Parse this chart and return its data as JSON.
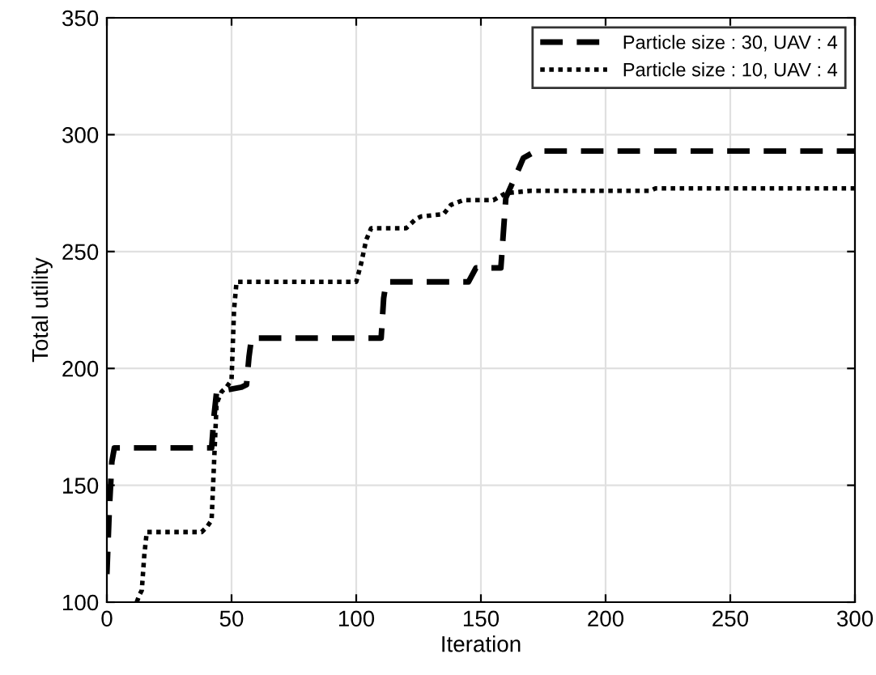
{
  "chart_data": {
    "type": "line",
    "xlabel": "Iteration",
    "ylabel": "Total utility",
    "xlim": [
      0,
      300
    ],
    "ylim": [
      100,
      350
    ],
    "xticks": [
      0,
      50,
      100,
      150,
      200,
      250,
      300
    ],
    "yticks": [
      100,
      150,
      200,
      250,
      300,
      350
    ],
    "grid": true,
    "legend": "top right",
    "marker": "none",
    "series": [
      {
        "name": "Particle size : 30, UAV : 4",
        "color": "#000000",
        "line_style": "dashed",
        "x": [
          0,
          1,
          2,
          3,
          42,
          43,
          44,
          54,
          56,
          57,
          58,
          110,
          111,
          112,
          145,
          148,
          158,
          160,
          165,
          167,
          172,
          300
        ],
        "values": [
          112,
          140,
          160,
          166,
          166,
          180,
          190,
          192,
          193,
          205,
          213,
          213,
          230,
          237,
          237,
          243,
          243,
          273,
          285,
          290,
          293,
          293
        ]
      },
      {
        "name": "Particle size : 10, UAV : 4",
        "color": "#000000",
        "line_style": "dotted",
        "x": [
          12,
          13,
          14,
          15,
          16,
          38,
          40,
          42,
          43,
          44,
          46,
          48,
          50,
          51,
          52,
          100,
          102,
          104,
          106,
          120,
          124,
          126,
          135,
          138,
          143,
          155,
          160,
          170,
          218,
          220,
          300
        ],
        "values": [
          100,
          103,
          105,
          120,
          130,
          130,
          132,
          135,
          160,
          185,
          190,
          192,
          195,
          225,
          237,
          237,
          245,
          255,
          260,
          260,
          264,
          265,
          266,
          270,
          272,
          272,
          275,
          276,
          276,
          277,
          277
        ]
      }
    ]
  }
}
